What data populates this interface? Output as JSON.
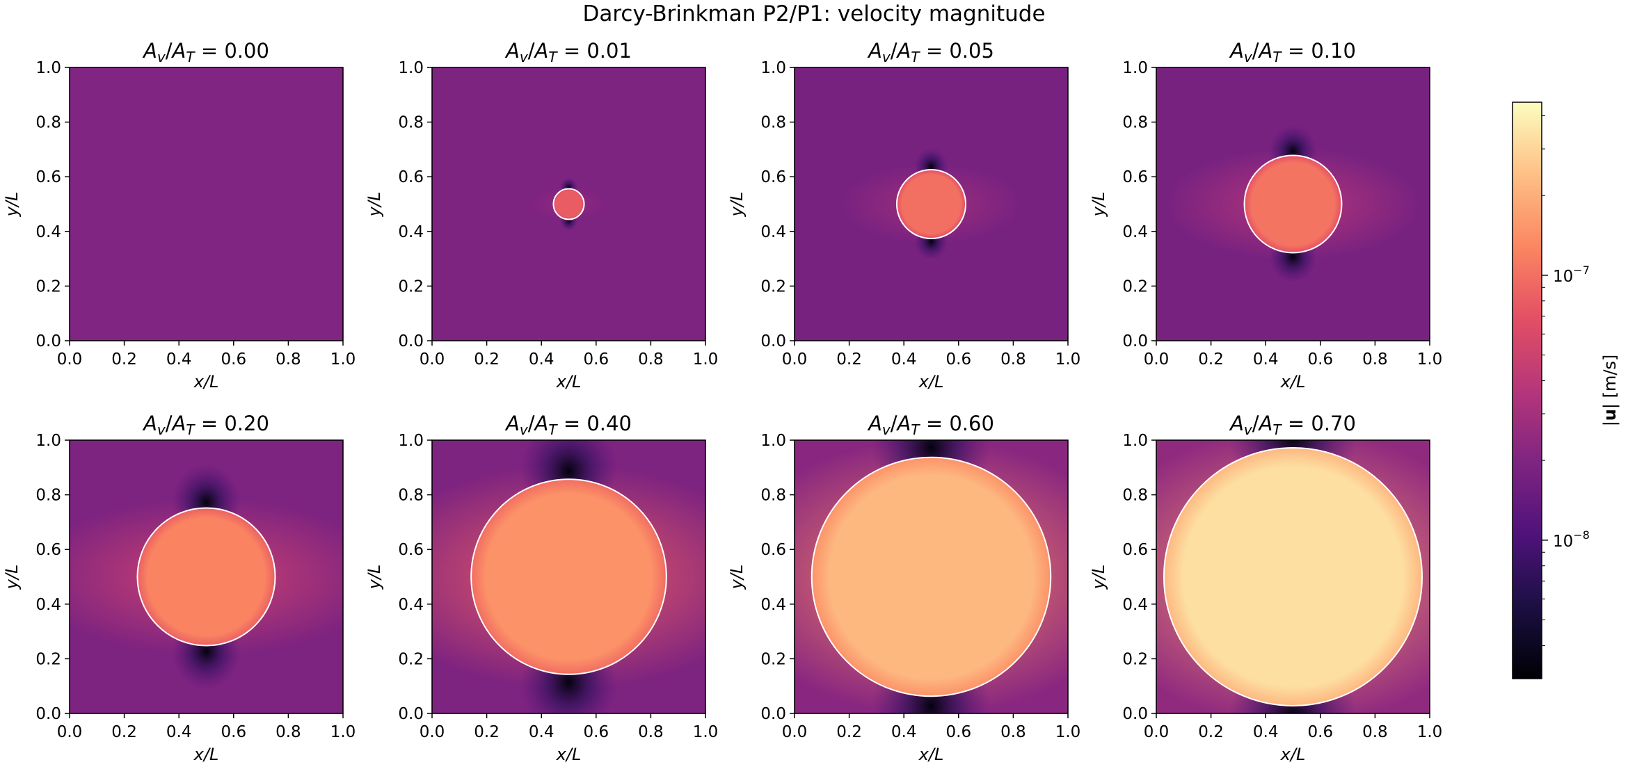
{
  "figure": {
    "suptitle": "Darcy-Brinkman P2/P1: velocity magnitude",
    "colormap": "magma"
  },
  "chart_data": {
    "type": "heatmap",
    "title": "Darcy-Brinkman P2/P1: velocity magnitude",
    "xlabel": "x/L",
    "ylabel": "y/L",
    "xlim": [
      0,
      1
    ],
    "ylim": [
      0,
      1
    ],
    "ticks": [
      "0.0",
      "0.2",
      "0.4",
      "0.6",
      "0.8",
      "1.0"
    ],
    "colorbar": {
      "label": "|u| [m/s]",
      "scale": "log",
      "range": [
        3e-09,
        4.5e-07
      ],
      "tick_labels": [
        {
          "base": "10",
          "exp": "−7",
          "value": 1e-07
        },
        {
          "base": "10",
          "exp": "−8",
          "value": 1e-08
        }
      ]
    },
    "circle_color": "#ffffff",
    "panels": [
      {
        "label": "0.00",
        "area_fraction": 0.0,
        "radius": 0.0,
        "background": 2e-08,
        "inner": 2e-08,
        "lateral": 2e-08
      },
      {
        "label": "0.01",
        "area_fraction": 0.01,
        "radius": 0.056,
        "background": 1.9e-08,
        "inner": 8e-08,
        "lateral": 2.4e-08
      },
      {
        "label": "0.05",
        "area_fraction": 0.05,
        "radius": 0.126,
        "background": 1.8e-08,
        "inner": 1e-07,
        "lateral": 2.8e-08
      },
      {
        "label": "0.10",
        "area_fraction": 0.1,
        "radius": 0.178,
        "background": 1.8e-08,
        "inner": 1.05e-07,
        "lateral": 3.6e-08
      },
      {
        "label": "0.20",
        "area_fraction": 0.2,
        "radius": 0.252,
        "background": 1.9e-08,
        "inner": 1.25e-07,
        "lateral": 5e-08
      },
      {
        "label": "0.40",
        "area_fraction": 0.4,
        "radius": 0.357,
        "background": 1.9e-08,
        "inner": 1.45e-07,
        "lateral": 8e-08
      },
      {
        "label": "0.60",
        "area_fraction": 0.6,
        "radius": 0.437,
        "background": 2.2e-08,
        "inner": 2.2e-07,
        "lateral": 1.3e-07
      },
      {
        "label": "0.70",
        "area_fraction": 0.7,
        "radius": 0.472,
        "background": 2.4e-08,
        "inner": 3.3e-07,
        "lateral": 1.6e-07
      }
    ]
  }
}
